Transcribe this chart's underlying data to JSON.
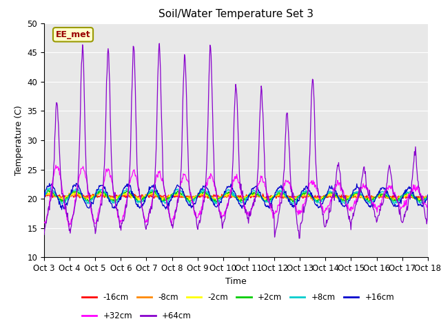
{
  "title": "Soil/Water Temperature Set 3",
  "xlabel": "Time",
  "ylabel": "Temperature (C)",
  "ylim": [
    10,
    50
  ],
  "xlim": [
    0,
    15
  ],
  "yticks": [
    10,
    15,
    20,
    25,
    30,
    35,
    40,
    45,
    50
  ],
  "xtick_labels": [
    "Oct 3",
    "Oct 4",
    "Oct 5",
    "Oct 6",
    "Oct 7",
    "Oct 8",
    "Oct 9",
    "Oct 10",
    "Oct 11",
    "Oct 12",
    "Oct 13",
    "Oct 14",
    "Oct 15",
    "Oct 16",
    "Oct 17",
    "Oct 18"
  ],
  "fig_bg_color": "#ffffff",
  "plot_bg_color": "#e8e8e8",
  "series": [
    {
      "label": "-16cm",
      "color": "#ff0000"
    },
    {
      "label": "-8cm",
      "color": "#ff8800"
    },
    {
      "label": "-2cm",
      "color": "#ffff00"
    },
    {
      "label": "+2cm",
      "color": "#00cc00"
    },
    {
      "label": "+8cm",
      "color": "#00cccc"
    },
    {
      "label": "+16cm",
      "color": "#0000cc"
    },
    {
      "label": "+32cm",
      "color": "#ff00ff"
    },
    {
      "label": "+64cm",
      "color": "#8800cc"
    }
  ],
  "annotation_text": "EE_met",
  "title_fontsize": 11,
  "label_fontsize": 9,
  "tick_fontsize": 8.5
}
